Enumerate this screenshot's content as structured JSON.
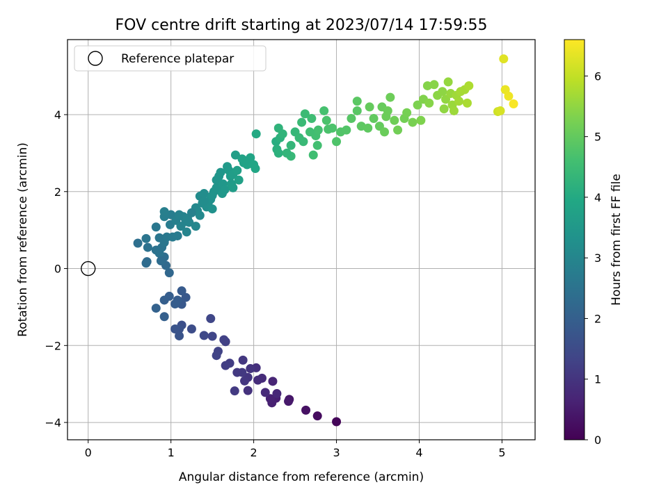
{
  "chart_data": {
    "type": "scatter",
    "title": "FOV centre drift starting at 2023/07/14 17:59:55",
    "xlabel": "Angular distance from reference (arcmin)",
    "ylabel": "Rotation from reference (arcmin)",
    "xlim": [
      -0.25,
      5.4
    ],
    "ylim": [
      -4.45,
      5.95
    ],
    "xticks": [
      0,
      1,
      2,
      3,
      4,
      5
    ],
    "yticks": [
      -4,
      -2,
      0,
      2,
      4
    ],
    "xtick_labels": [
      "0",
      "1",
      "2",
      "3",
      "4",
      "5"
    ],
    "ytick_labels": [
      "−4",
      "−2",
      "0",
      "2",
      "4"
    ],
    "grid": true,
    "legend": {
      "placement": "top-left",
      "entries": [
        "Reference platepar"
      ]
    },
    "reference_point": {
      "label": "Reference platepar",
      "x": 0,
      "y": 0,
      "marker": "open-circle"
    },
    "colorbar": {
      "label": "Hours from first FF file",
      "range": [
        0,
        6.6
      ],
      "ticks": [
        0,
        1,
        2,
        3,
        4,
        5,
        6
      ],
      "tick_labels": [
        "0",
        "1",
        "2",
        "3",
        "4",
        "5",
        "6"
      ],
      "colormap": "viridis"
    },
    "series": [
      {
        "points": [
          [
            3.0,
            -3.98,
            0.1
          ],
          [
            2.77,
            -3.83,
            0.2
          ],
          [
            2.63,
            -3.68,
            0.3
          ],
          [
            2.43,
            -3.4,
            0.4
          ],
          [
            2.42,
            -3.45,
            0.45
          ],
          [
            2.27,
            -3.37,
            0.55
          ],
          [
            2.22,
            -3.49,
            0.6
          ],
          [
            2.2,
            -3.38,
            0.62
          ],
          [
            2.23,
            -2.93,
            0.7
          ],
          [
            2.28,
            -3.25,
            0.72
          ],
          [
            2.14,
            -3.22,
            0.8
          ],
          [
            2.05,
            -2.9,
            0.85
          ],
          [
            2.03,
            -2.58,
            0.9
          ],
          [
            1.93,
            -3.17,
            0.95
          ],
          [
            1.96,
            -2.6,
            1.0
          ],
          [
            1.93,
            -2.83,
            1.02
          ],
          [
            1.89,
            -2.92,
            1.05
          ],
          [
            1.87,
            -2.38,
            1.08
          ],
          [
            1.86,
            -2.7,
            1.1
          ],
          [
            1.77,
            -3.18,
            1.12
          ],
          [
            1.71,
            -2.46,
            1.18
          ],
          [
            1.66,
            -2.52,
            1.2
          ],
          [
            1.66,
            -1.9,
            1.25
          ],
          [
            1.64,
            -1.85,
            1.27
          ],
          [
            1.57,
            -2.15,
            1.3
          ],
          [
            1.55,
            -2.26,
            1.32
          ],
          [
            1.5,
            -1.76,
            1.38
          ],
          [
            1.48,
            -1.3,
            1.4
          ],
          [
            1.4,
            -1.74,
            1.45
          ],
          [
            1.25,
            -1.57,
            1.55
          ],
          [
            1.13,
            -1.47,
            1.6
          ],
          [
            1.1,
            -1.57,
            1.65
          ],
          [
            1.1,
            -1.75,
            1.7
          ],
          [
            1.05,
            -1.57,
            1.72
          ],
          [
            1.18,
            -0.75,
            1.8
          ],
          [
            1.13,
            -0.93,
            1.82
          ],
          [
            1.13,
            -0.58,
            1.85
          ],
          [
            1.08,
            -0.82,
            1.9
          ],
          [
            1.05,
            -0.92,
            1.92
          ],
          [
            0.98,
            -0.72,
            1.95
          ],
          [
            0.92,
            -0.82,
            1.97
          ],
          [
            0.92,
            -1.25,
            2.0
          ],
          [
            0.82,
            -1.03,
            2.05
          ],
          [
            0.98,
            -0.11,
            2.2
          ],
          [
            0.94,
            0.08,
            2.25
          ],
          [
            0.71,
            0.18,
            2.3
          ],
          [
            0.7,
            0.14,
            2.32
          ],
          [
            0.92,
            0.3,
            2.35
          ],
          [
            0.6,
            0.66,
            2.4
          ],
          [
            0.72,
            0.55,
            2.45
          ],
          [
            0.82,
            0.48,
            2.48
          ],
          [
            0.86,
            0.4,
            2.5
          ],
          [
            0.89,
            0.55,
            2.52
          ],
          [
            0.7,
            0.78,
            2.55
          ],
          [
            0.86,
            0.8,
            2.58
          ],
          [
            0.92,
            0.68,
            2.6
          ],
          [
            0.82,
            1.08,
            2.62
          ],
          [
            0.95,
            0.82,
            2.65
          ],
          [
            1.02,
            0.82,
            2.7
          ],
          [
            1.08,
            0.85,
            2.72
          ],
          [
            0.99,
            1.14,
            2.75
          ],
          [
            1.0,
            1.4,
            2.78
          ],
          [
            0.92,
            1.35,
            2.8
          ],
          [
            0.92,
            1.48,
            2.82
          ],
          [
            1.06,
            1.25,
            2.85
          ],
          [
            1.1,
            1.4,
            2.87
          ],
          [
            1.15,
            1.35,
            2.9
          ],
          [
            1.18,
            1.22,
            2.92
          ],
          [
            1.12,
            1.1,
            2.94
          ],
          [
            1.19,
            0.95,
            2.96
          ],
          [
            1.22,
            1.2,
            2.98
          ],
          [
            1.3,
            1.1,
            3.0
          ],
          [
            1.3,
            1.58,
            3.05
          ],
          [
            1.32,
            1.5,
            3.08
          ],
          [
            1.35,
            1.38,
            3.1
          ],
          [
            1.35,
            1.88,
            3.15
          ],
          [
            1.38,
            1.7,
            3.18
          ],
          [
            1.4,
            1.95,
            3.2
          ],
          [
            1.43,
            1.6,
            3.22
          ],
          [
            1.45,
            1.7,
            3.25
          ],
          [
            1.48,
            1.8,
            3.28
          ],
          [
            1.5,
            1.55,
            3.3
          ],
          [
            1.5,
            1.9,
            3.32
          ],
          [
            1.52,
            2.0,
            3.35
          ],
          [
            1.55,
            2.1,
            3.38
          ],
          [
            1.55,
            2.3,
            3.4
          ],
          [
            1.58,
            2.4,
            3.42
          ],
          [
            1.6,
            2.5,
            3.44
          ],
          [
            1.62,
            1.95,
            3.46
          ],
          [
            1.63,
            2.2,
            3.48
          ],
          [
            1.65,
            2.05,
            3.5
          ],
          [
            1.68,
            2.65,
            3.53
          ],
          [
            1.7,
            2.55,
            3.56
          ],
          [
            1.72,
            2.4,
            3.58
          ],
          [
            1.73,
            2.2,
            3.6
          ],
          [
            1.75,
            2.1,
            3.62
          ],
          [
            1.75,
            2.45,
            3.65
          ],
          [
            1.78,
            2.95,
            3.68
          ],
          [
            1.8,
            2.55,
            3.7
          ],
          [
            1.82,
            2.3,
            3.72
          ],
          [
            1.86,
            2.85,
            3.78
          ],
          [
            1.88,
            2.75,
            3.8
          ],
          [
            1.92,
            2.7,
            3.82
          ],
          [
            1.96,
            2.88,
            3.85
          ],
          [
            2.0,
            2.7,
            3.88
          ],
          [
            2.02,
            2.6,
            3.9
          ],
          [
            2.03,
            3.5,
            4.0
          ],
          [
            2.27,
            3.3,
            4.1
          ],
          [
            2.28,
            3.1,
            4.15
          ],
          [
            2.3,
            3.0,
            4.18
          ],
          [
            2.32,
            3.4,
            4.2
          ],
          [
            2.3,
            3.65,
            4.25
          ],
          [
            2.35,
            3.5,
            4.28
          ],
          [
            2.45,
            3.2,
            4.32
          ],
          [
            2.5,
            3.55,
            4.35
          ],
          [
            2.45,
            2.92,
            4.38
          ],
          [
            2.55,
            3.4,
            4.4
          ],
          [
            2.6,
            3.3,
            4.42
          ],
          [
            2.58,
            3.8,
            4.45
          ],
          [
            2.62,
            4.02,
            4.48
          ],
          [
            2.7,
            3.9,
            4.52
          ],
          [
            2.72,
            2.95,
            4.55
          ],
          [
            2.75,
            3.45,
            4.58
          ],
          [
            2.77,
            3.2,
            4.6
          ],
          [
            2.78,
            3.6,
            4.62
          ],
          [
            2.85,
            4.1,
            4.65
          ],
          [
            2.88,
            3.85,
            4.7
          ],
          [
            2.95,
            3.65,
            4.72
          ],
          [
            3.0,
            3.3,
            4.75
          ],
          [
            3.05,
            3.55,
            4.78
          ],
          [
            3.12,
            3.6,
            4.8
          ],
          [
            3.18,
            3.9,
            4.85
          ],
          [
            3.25,
            4.1,
            4.88
          ],
          [
            3.25,
            4.35,
            4.9
          ],
          [
            3.3,
            3.7,
            4.92
          ],
          [
            3.38,
            3.65,
            4.95
          ],
          [
            3.45,
            3.9,
            4.98
          ],
          [
            3.52,
            3.7,
            5.02
          ],
          [
            3.55,
            4.2,
            5.05
          ],
          [
            3.58,
            3.55,
            5.08
          ],
          [
            3.62,
            4.1,
            5.1
          ],
          [
            3.65,
            4.45,
            5.12
          ],
          [
            3.7,
            3.85,
            5.15
          ],
          [
            3.74,
            3.6,
            5.18
          ],
          [
            3.82,
            3.9,
            5.2
          ],
          [
            3.85,
            4.05,
            5.23
          ],
          [
            3.92,
            3.8,
            5.26
          ],
          [
            3.98,
            4.25,
            5.3
          ],
          [
            4.02,
            3.85,
            5.32
          ],
          [
            4.05,
            4.4,
            5.35
          ],
          [
            4.1,
            4.75,
            5.38
          ],
          [
            4.12,
            4.3,
            5.4
          ],
          [
            4.18,
            4.78,
            5.42
          ],
          [
            4.22,
            4.5,
            5.45
          ],
          [
            4.28,
            4.6,
            5.48
          ],
          [
            4.3,
            4.15,
            5.5
          ],
          [
            4.32,
            4.4,
            5.52
          ],
          [
            4.35,
            4.85,
            5.55
          ],
          [
            4.38,
            4.55,
            5.58
          ],
          [
            4.4,
            4.25,
            5.6
          ],
          [
            4.42,
            4.1,
            5.62
          ],
          [
            4.45,
            4.5,
            5.65
          ],
          [
            4.48,
            4.35,
            5.68
          ],
          [
            4.5,
            4.6,
            5.7
          ],
          [
            4.55,
            4.65,
            5.72
          ],
          [
            4.58,
            4.3,
            5.75
          ],
          [
            4.6,
            4.75,
            5.78
          ],
          [
            4.95,
            4.08,
            6.1
          ],
          [
            5.02,
            5.45,
            6.3
          ],
          [
            5.04,
            4.65,
            6.4
          ],
          [
            5.08,
            4.48,
            6.45
          ],
          [
            5.14,
            4.28,
            6.55
          ],
          [
            4.98,
            4.1,
            6.2
          ],
          [
            3.4,
            4.2,
            5.02
          ],
          [
            2.9,
            3.62,
            4.7
          ],
          [
            2.4,
            3.0,
            4.3
          ],
          [
            1.9,
            2.8,
            3.8
          ],
          [
            1.4,
            1.75,
            3.2
          ],
          [
            1.2,
            1.3,
            2.95
          ],
          [
            2.1,
            -2.85,
            0.82
          ],
          [
            1.8,
            -2.7,
            1.1
          ],
          [
            0.88,
            0.2,
            2.32
          ],
          [
            1.25,
            1.45,
            2.88
          ],
          [
            2.68,
            3.55,
            4.56
          ],
          [
            3.6,
            3.95,
            5.1
          ]
        ]
      }
    ]
  }
}
